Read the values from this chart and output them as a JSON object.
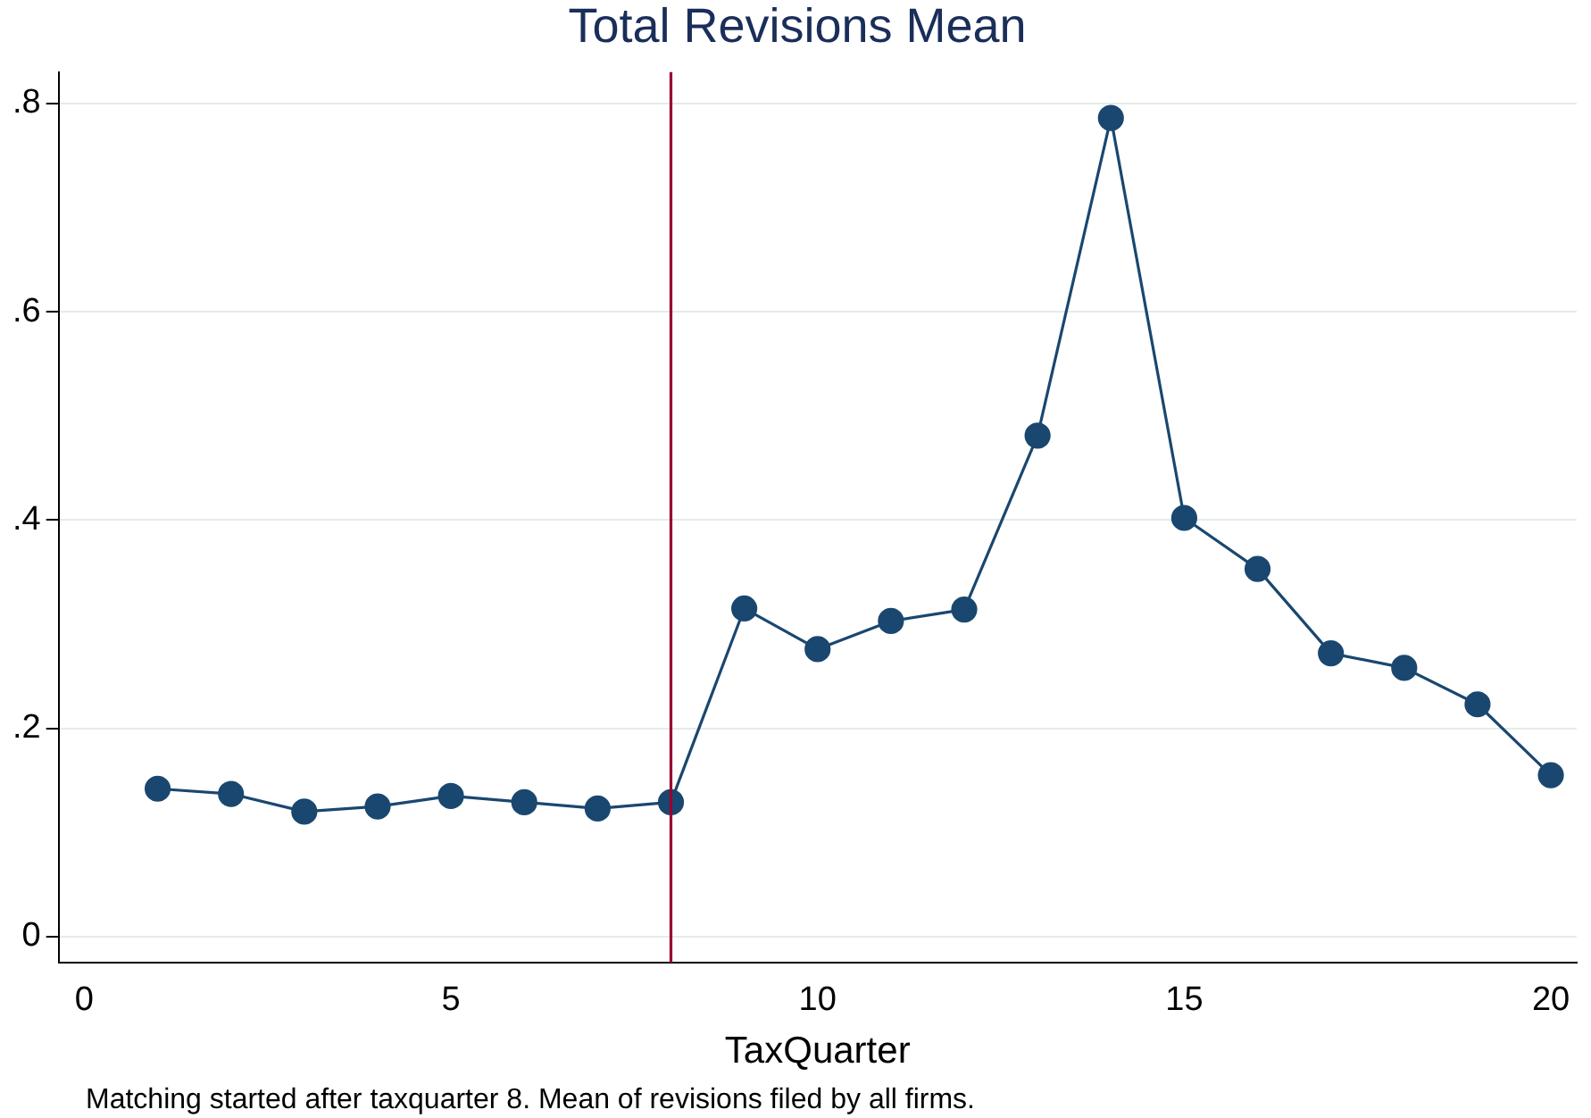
{
  "chart_data": {
    "type": "line",
    "title": "Total Revisions Mean",
    "xlabel": "TaxQuarter",
    "x": [
      1,
      2,
      3,
      4,
      5,
      6,
      7,
      8,
      9,
      10,
      11,
      12,
      13,
      14,
      15,
      16,
      17,
      18,
      19,
      20
    ],
    "series": [
      {
        "color": "#1a476f",
        "values": [
          0.142,
          0.137,
          0.12,
          0.125,
          0.135,
          0.129,
          0.123,
          0.129,
          0.315,
          0.276,
          0.303,
          0.314,
          0.481,
          0.786,
          0.402,
          0.353,
          0.272,
          0.258,
          0.223,
          0.155
        ]
      }
    ],
    "xlim": [
      -0.35,
      20.35
    ],
    "xticks": [
      0,
      5,
      10,
      15,
      20
    ],
    "ylim": [
      -0.025,
      0.83
    ],
    "yticks": [
      {
        "value": 0,
        "label": "0"
      },
      {
        "value": 0.2,
        "label": ".2"
      },
      {
        "value": 0.4,
        "label": ".4"
      },
      {
        "value": 0.6,
        "label": ".6"
      },
      {
        "value": 0.8,
        "label": ".8"
      }
    ],
    "ref_lines": [
      {
        "axis": "x",
        "value": 8,
        "color": "#990033"
      }
    ],
    "annotations": [
      "Matching started after taxquarter 8. Mean of revisions filed by all firms."
    ],
    "grid": "y",
    "legend": false,
    "marker": "circle",
    "line_style": "solid"
  }
}
